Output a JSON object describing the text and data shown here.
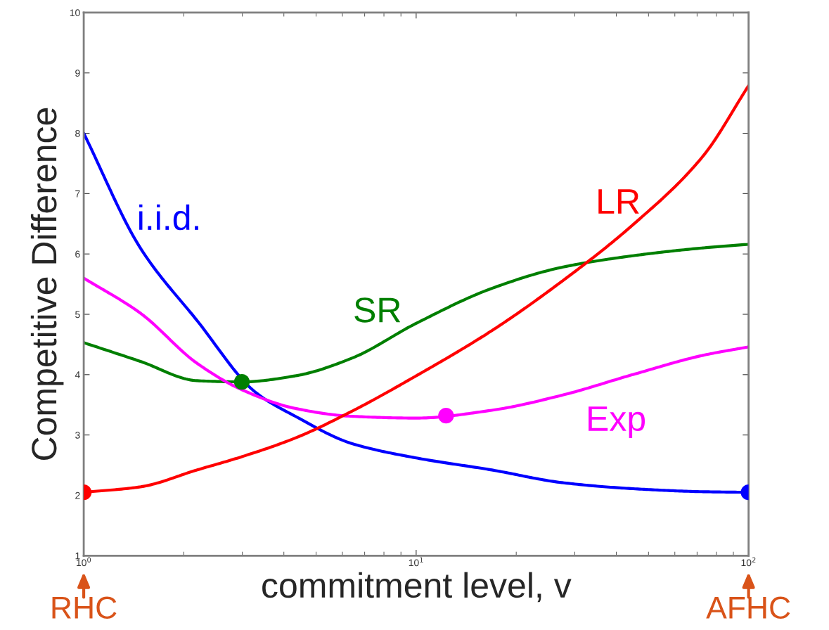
{
  "chart_data": {
    "type": "line",
    "xlabel": "commitment level, v",
    "ylabel": "Competitive Difference",
    "log": "x",
    "xlim": [
      1,
      100
    ],
    "xticks": [
      {
        "value": 1,
        "label": "10$^{0}$"
      },
      {
        "value": 10,
        "label": "10$^{1}$"
      },
      {
        "value": 100,
        "label": "10$^{2}$"
      }
    ],
    "ylim": [
      1,
      10
    ],
    "yticks": [
      1,
      2,
      3,
      4,
      5,
      6,
      7,
      8,
      9,
      10
    ],
    "grid": false,
    "legend": false,
    "x": [
      1,
      1.48,
      2.19,
      2.99,
      4.33,
      6.39,
      10,
      16.9,
      27.5,
      44.8,
      72.9,
      100
    ],
    "series": [
      {
        "name": "i.i.d.",
        "color": "#0000ff",
        "x": [
          1,
          1.48,
          2.19,
          3.3,
          4.33,
          6.39,
          10,
          16.9,
          27.5,
          44.8,
          72.9,
          100
        ],
        "values": [
          8.0,
          6.1,
          4.9,
          3.7,
          3.31,
          2.86,
          2.62,
          2.42,
          2.21,
          2.11,
          2.06,
          2.05
        ]
      },
      {
        "name": "SR",
        "color": "#007f00",
        "values": [
          4.53,
          4.22,
          3.9,
          3.88,
          3.98,
          4.27,
          4.85,
          5.43,
          5.78,
          5.97,
          6.1,
          6.16
        ]
      },
      {
        "name": "Exp",
        "color": "#ff00ff",
        "values": [
          5.6,
          5.02,
          4.19,
          3.75,
          3.44,
          3.31,
          3.28,
          3.41,
          3.66,
          4.0,
          4.32,
          4.46
        ]
      },
      {
        "name": "LR",
        "color": "#ff0000",
        "values": [
          2.05,
          2.14,
          2.42,
          2.64,
          2.95,
          3.39,
          3.98,
          4.73,
          5.55,
          6.48,
          7.62,
          8.79
        ]
      },
      {
        "type": "scatter",
        "color": "#0000ff",
        "x": [
          100
        ],
        "values": [
          2.05
        ]
      },
      {
        "type": "scatter",
        "color": "#007f00",
        "x": [
          2.99
        ],
        "values": [
          3.88
        ]
      },
      {
        "type": "scatter",
        "color": "#ff00ff",
        "x": [
          12.3
        ],
        "values": [
          3.32
        ]
      },
      {
        "type": "scatter",
        "color": "#ff0000",
        "x": [
          1
        ],
        "values": [
          2.05
        ]
      }
    ],
    "annotations": [
      "RHC",
      "AFHC"
    ]
  }
}
